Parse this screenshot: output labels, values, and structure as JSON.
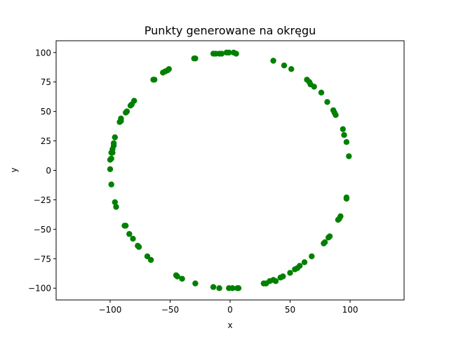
{
  "chart_data": {
    "type": "scatter",
    "title": "Punkty generowane na okręgu",
    "xlabel": "x",
    "ylabel": "y",
    "xlim": [
      -145,
      145
    ],
    "ylim": [
      -110,
      110
    ],
    "xticks": [
      -100,
      -50,
      0,
      50,
      100
    ],
    "yticks": [
      -100,
      -75,
      -50,
      -25,
      0,
      25,
      50,
      75,
      100
    ],
    "xtick_labels": [
      "−100",
      "−50",
      "0",
      "50",
      "100"
    ],
    "ytick_labels": [
      "−100",
      "−75",
      "−50",
      "−25",
      "0",
      "25",
      "50",
      "75",
      "100"
    ],
    "grid": false,
    "legend": "none",
    "marker_color": "#008000",
    "series": [
      {
        "points": [
          [
            -14,
            99
          ],
          [
            -12,
            99
          ],
          [
            -9,
            99
          ],
          [
            -7,
            99
          ],
          [
            -3,
            100
          ],
          [
            -1,
            100
          ],
          [
            3,
            100
          ],
          [
            5,
            99
          ],
          [
            -30,
            95
          ],
          [
            -29,
            95
          ],
          [
            -63,
            77
          ],
          [
            -64,
            77
          ],
          [
            -56,
            83
          ],
          [
            -54,
            84
          ],
          [
            -52,
            85
          ],
          [
            -51,
            86
          ],
          [
            -80,
            59
          ],
          [
            -82,
            56
          ],
          [
            -83,
            55
          ],
          [
            -86,
            50
          ],
          [
            -87,
            49
          ],
          [
            -91,
            42
          ],
          [
            -92,
            41
          ],
          [
            -91,
            44
          ],
          [
            -96,
            28
          ],
          [
            -97,
            23
          ],
          [
            -97,
            21
          ],
          [
            -98,
            18
          ],
          [
            -99,
            15
          ],
          [
            -98,
            15
          ],
          [
            -99,
            10
          ],
          [
            -100,
            9
          ],
          [
            -100,
            1
          ],
          [
            -99,
            -12
          ],
          [
            -96,
            -27
          ],
          [
            -95,
            -31
          ],
          [
            -88,
            -47
          ],
          [
            -87,
            -47
          ],
          [
            -84,
            -54
          ],
          [
            -81,
            -58
          ],
          [
            -77,
            -64
          ],
          [
            -76,
            -65
          ],
          [
            -69,
            -73
          ],
          [
            -66,
            -76
          ],
          [
            -45,
            -89
          ],
          [
            -44,
            -90
          ],
          [
            -40,
            -92
          ],
          [
            -29,
            -96
          ],
          [
            -14,
            -99
          ],
          [
            -9,
            -100
          ],
          [
            -1,
            -100
          ],
          [
            2,
            -100
          ],
          [
            6,
            -100
          ],
          [
            7,
            -100
          ],
          [
            28,
            -96
          ],
          [
            30,
            -96
          ],
          [
            33,
            -94
          ],
          [
            36,
            -93
          ],
          [
            38,
            -94
          ],
          [
            42,
            -91
          ],
          [
            44,
            -90
          ],
          [
            50,
            -87
          ],
          [
            54,
            -84
          ],
          [
            56,
            -83
          ],
          [
            58,
            -81
          ],
          [
            62,
            -78
          ],
          [
            68,
            -73
          ],
          [
            78,
            -62
          ],
          [
            79,
            -61
          ],
          [
            82,
            -57
          ],
          [
            83,
            -56
          ],
          [
            90,
            -42
          ],
          [
            91,
            -41
          ],
          [
            92,
            -39
          ],
          [
            97,
            -24
          ],
          [
            97,
            -23
          ],
          [
            99,
            12
          ],
          [
            97,
            24
          ],
          [
            95,
            30
          ],
          [
            94,
            35
          ],
          [
            88,
            47
          ],
          [
            87,
            49
          ],
          [
            86,
            51
          ],
          [
            81,
            58
          ],
          [
            76,
            66
          ],
          [
            70,
            71
          ],
          [
            67,
            73
          ],
          [
            66,
            75
          ],
          [
            64,
            77
          ],
          [
            51,
            86
          ],
          [
            45,
            89
          ],
          [
            36,
            93
          ]
        ]
      }
    ]
  }
}
